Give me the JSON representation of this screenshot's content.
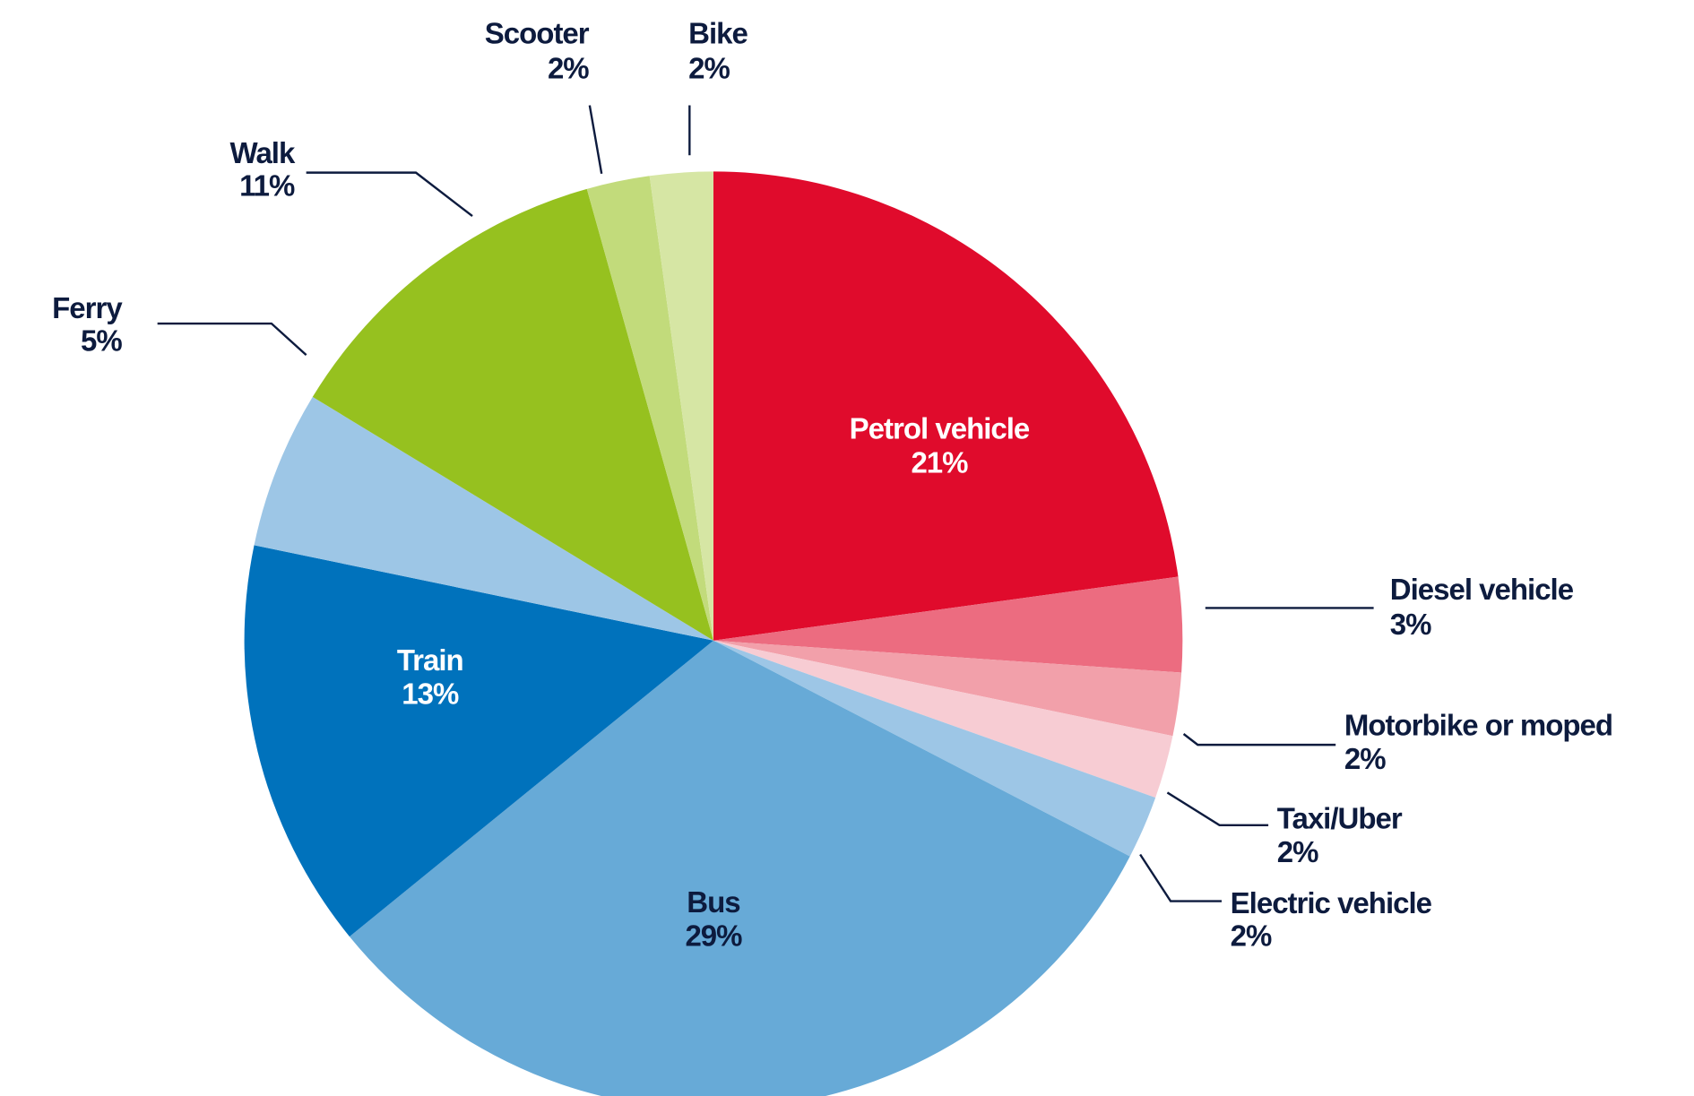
{
  "chart_data": {
    "type": "pie",
    "categories": [
      "Petrol vehicle",
      "Diesel vehicle",
      "Motorbike or moped",
      "Taxi/Uber",
      "Electric vehicle",
      "Bus",
      "Train",
      "Ferry",
      "Walk",
      "Scooter",
      "Bike"
    ],
    "values": [
      21,
      3,
      2,
      2,
      2,
      29,
      13,
      5,
      11,
      2,
      2
    ],
    "value_labels": [
      "21%",
      "3%",
      "2%",
      "2%",
      "2%",
      "29%",
      "13%",
      "5%",
      "11%",
      "2%",
      "2%"
    ],
    "colors": [
      "#e00b2c",
      "#ec6c80",
      "#f2a0aa",
      "#f7ccd3",
      "#9dc6e6",
      "#67aad7",
      "#0072bc",
      "#9dc6e6",
      "#96c11f",
      "#c2db7b",
      "#d6e6a4"
    ]
  }
}
